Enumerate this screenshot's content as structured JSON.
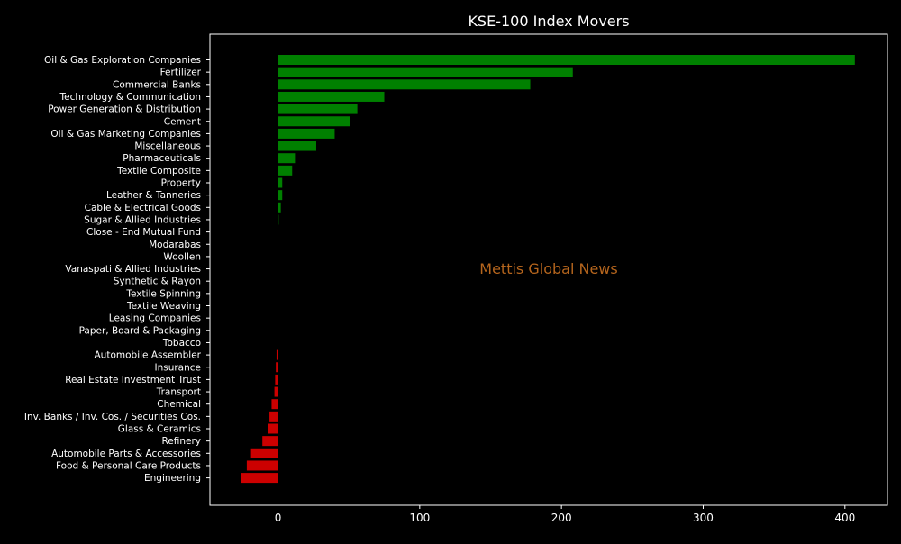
{
  "chart_data": {
    "type": "bar",
    "orientation": "horizontal",
    "title": "KSE-100 Index Movers",
    "watermark": "Mettis Global News",
    "xlabel": "",
    "ylabel": "",
    "xlim": [
      -48,
      430
    ],
    "xticks": [
      0,
      100,
      200,
      300,
      400
    ],
    "grid": false,
    "positive_color": "#008000",
    "negative_color": "#cc0000",
    "watermark_color": "#b5651d",
    "categories": [
      "Oil & Gas Exploration Companies",
      "Fertilizer",
      "Commercial Banks",
      "Technology & Communication",
      "Power Generation & Distribution",
      "Cement",
      "Oil & Gas Marketing Companies",
      "Miscellaneous",
      "Pharmaceuticals",
      "Textile Composite",
      "Property",
      "Leather & Tanneries",
      "Cable & Electrical Goods",
      "Sugar & Allied Industries",
      "Close - End Mutual Fund",
      "Modarabas",
      "Woollen",
      "Vanaspati & Allied Industries",
      "Synthetic & Rayon",
      "Textile Spinning",
      "Textile Weaving",
      "Leasing Companies",
      "Paper, Board & Packaging",
      "Tobacco",
      "Automobile Assembler",
      "Insurance",
      "Real Estate Investment Trust",
      "Transport",
      "Chemical",
      "Inv. Banks / Inv. Cos. / Securities Cos.",
      "Glass & Ceramics",
      "Refinery",
      "Automobile Parts & Accessories",
      "Food & Personal Care Products",
      "Engineering"
    ],
    "values": [
      407,
      208,
      178,
      75,
      56,
      51,
      40,
      27,
      12,
      10,
      3,
      3,
      2,
      0.5,
      0,
      0,
      0,
      0,
      0,
      0,
      0,
      0,
      0,
      0,
      -1,
      -1.5,
      -2,
      -2.5,
      -4.5,
      -6,
      -7,
      -11,
      -19,
      -22,
      -26
    ]
  }
}
